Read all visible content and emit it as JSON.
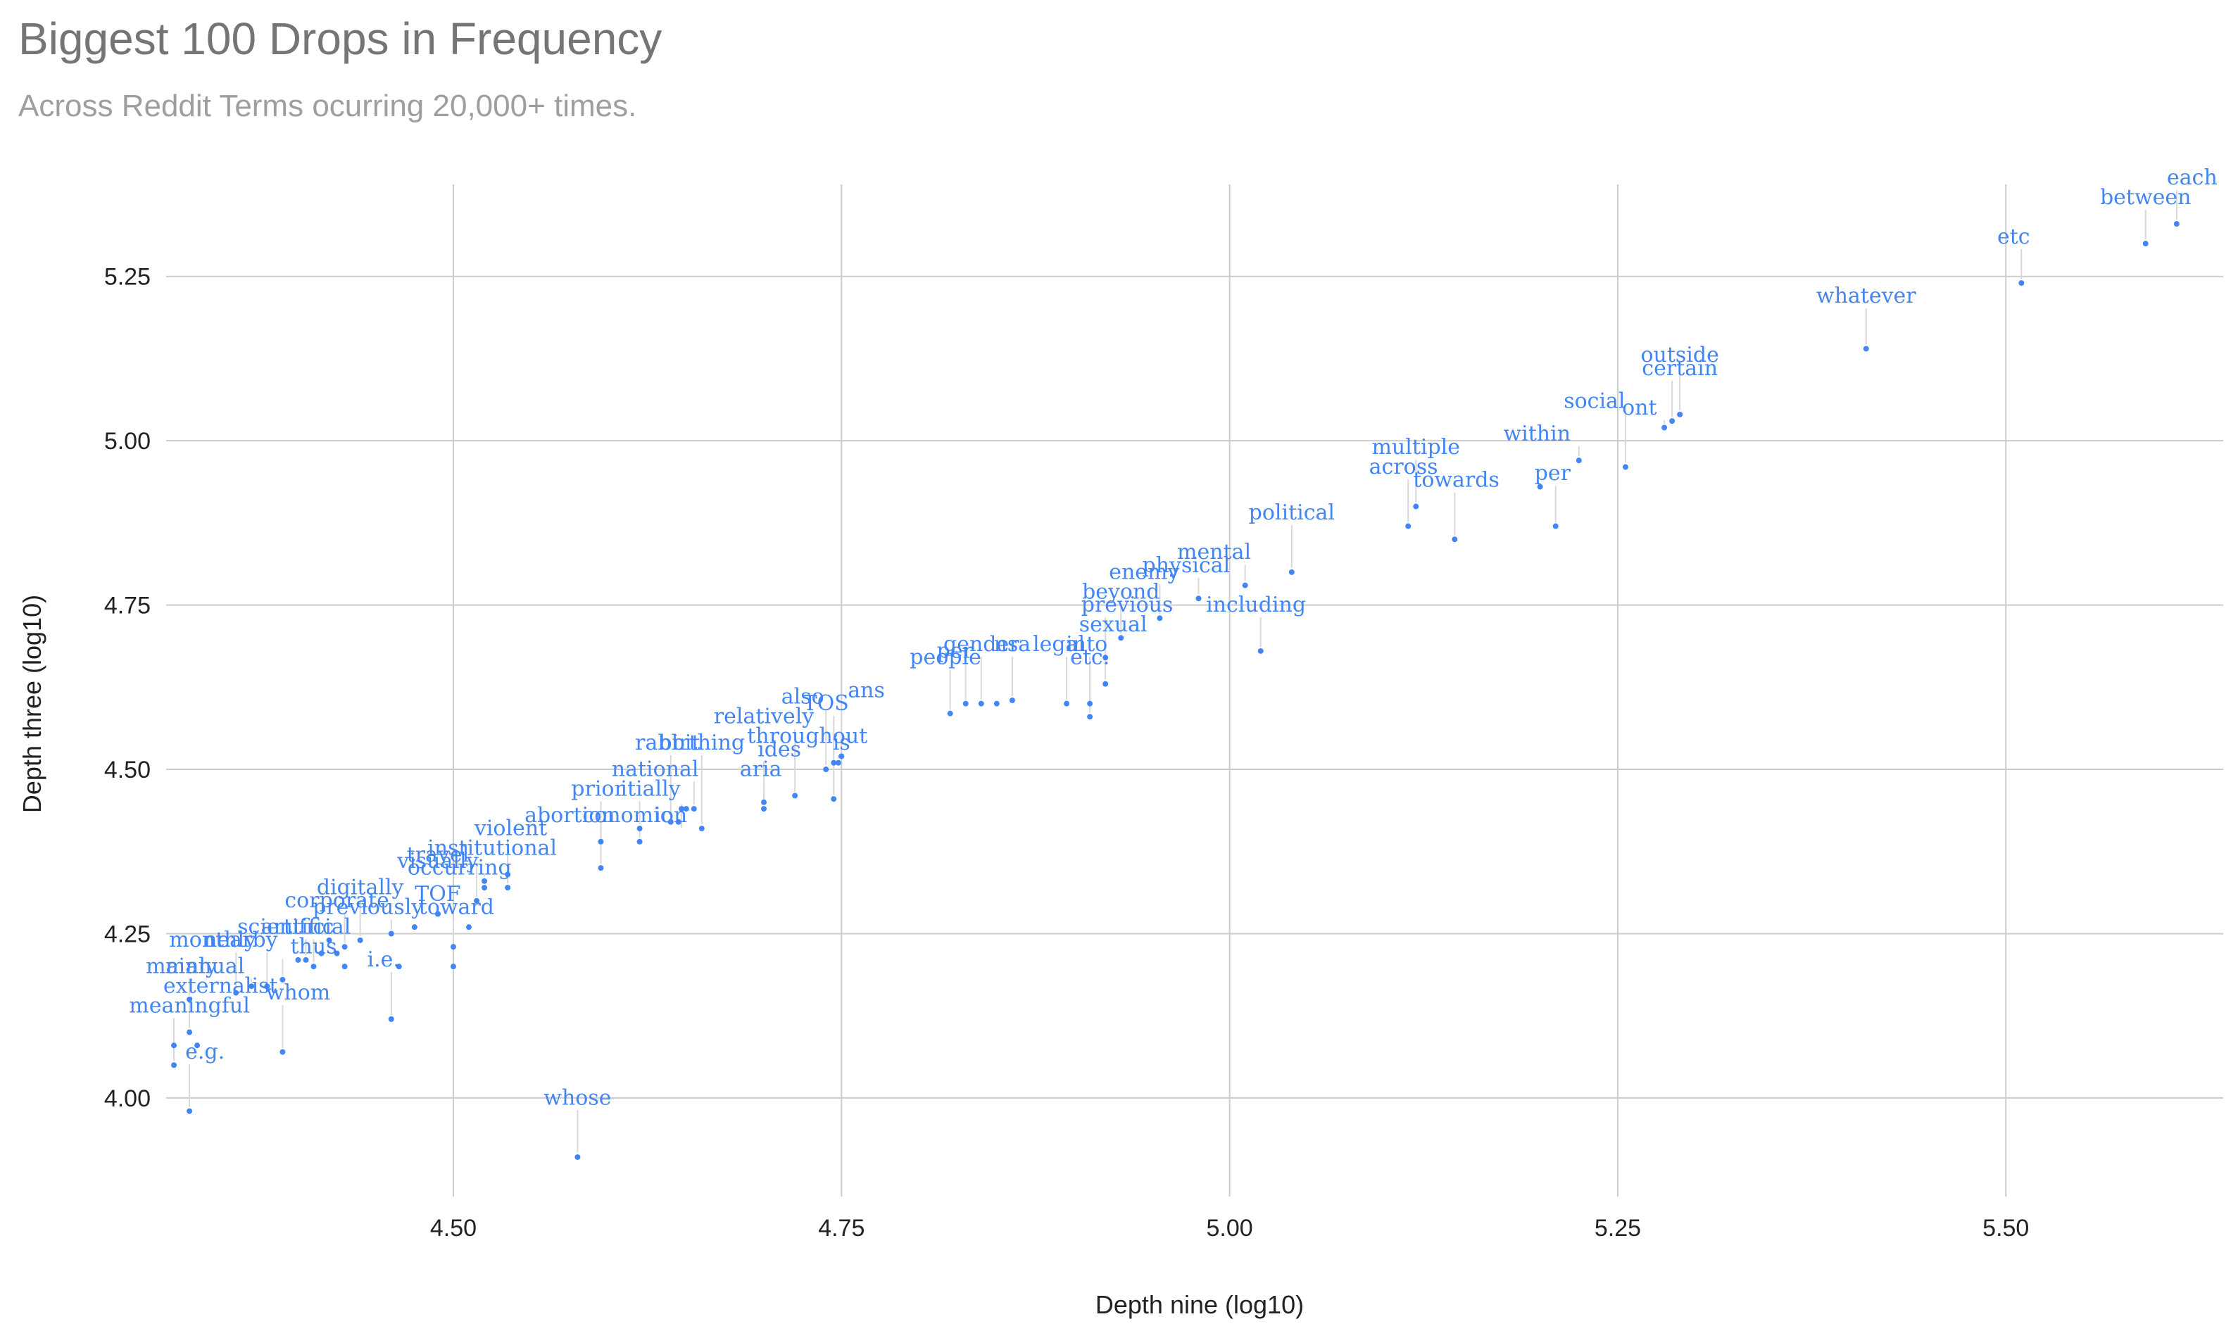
{
  "chart_data": {
    "type": "scatter",
    "title": "Biggest 100 Drops in Frequency",
    "subtitle": "Across Reddit Terms ocurring 20,000+ times.",
    "xlabel": "Depth nine (log10)",
    "ylabel": "Depth three (log10)",
    "xlim": [
      4.315,
      5.64
    ],
    "ylim": [
      3.85,
      5.39
    ],
    "xticks": [
      "4.50",
      "4.75",
      "5.00",
      "5.25",
      "5.50"
    ],
    "yticks": [
      "4.00",
      "4.25",
      "4.50",
      "4.75",
      "5.00",
      "5.25"
    ],
    "grid": true,
    "color": "#4285f4",
    "points": [
      {
        "label": "each",
        "x": 5.61,
        "y": 5.33,
        "lx": 5.62,
        "ly": 5.39
      },
      {
        "label": "between",
        "x": 5.59,
        "y": 5.3,
        "lx": 5.59,
        "ly": 5.36
      },
      {
        "label": "etc",
        "x": 5.51,
        "y": 5.24,
        "lx": 5.505,
        "ly": 5.3
      },
      {
        "label": "whatever",
        "x": 5.41,
        "y": 5.14,
        "lx": 5.41,
        "ly": 5.21
      },
      {
        "label": "outside",
        "x": 5.29,
        "y": 5.04,
        "lx": 5.29,
        "ly": 5.12
      },
      {
        "label": "certain",
        "x": 5.285,
        "y": 5.03,
        "lx": 5.29,
        "ly": 5.1
      },
      {
        "label": "ont",
        "x": 5.28,
        "y": 5.02,
        "lx": 5.264,
        "ly": 5.04
      },
      {
        "label": "social",
        "x": 5.255,
        "y": 4.96,
        "lx": 5.235,
        "ly": 5.05
      },
      {
        "label": "within",
        "x": 5.225,
        "y": 4.97,
        "lx": 5.198,
        "ly": 5.0
      },
      {
        "label": "per",
        "x": 5.21,
        "y": 4.87,
        "lx": 5.208,
        "ly": 4.94
      },
      {
        "label": "multiple",
        "x": 5.12,
        "y": 4.9,
        "lx": 5.12,
        "ly": 4.98
      },
      {
        "label": "across",
        "x": 5.115,
        "y": 4.87,
        "lx": 5.112,
        "ly": 4.95
      },
      {
        "label": "towards",
        "x": 5.145,
        "y": 4.85,
        "lx": 5.146,
        "ly": 4.93
      },
      {
        "label": "political",
        "x": 5.04,
        "y": 4.8,
        "lx": 5.04,
        "ly": 4.88
      },
      {
        "label": "mental",
        "x": 5.01,
        "y": 4.78,
        "lx": 4.99,
        "ly": 4.82
      },
      {
        "label": "physical",
        "x": 4.98,
        "y": 4.76,
        "lx": 4.972,
        "ly": 4.8
      },
      {
        "label": "enemy",
        "x": 4.955,
        "y": 4.73,
        "lx": 4.945,
        "ly": 4.79
      },
      {
        "label": "beyond",
        "x": 4.93,
        "y": 4.7,
        "lx": 4.93,
        "ly": 4.76
      },
      {
        "label": "previous",
        "x": 4.92,
        "y": 4.67,
        "lx": 4.934,
        "ly": 4.74
      },
      {
        "label": "including",
        "x": 5.02,
        "y": 4.68,
        "lx": 5.017,
        "ly": 4.74
      },
      {
        "label": "sexual",
        "x": 4.92,
        "y": 4.63,
        "lx": 4.925,
        "ly": 4.71
      },
      {
        "label": "into",
        "x": 4.91,
        "y": 4.6,
        "lx": 4.908,
        "ly": 4.68
      },
      {
        "label": "etc.",
        "x": 4.91,
        "y": 4.58,
        "lx": 4.91,
        "ly": 4.66
      },
      {
        "label": "legal",
        "x": 4.895,
        "y": 4.6,
        "lx": 4.89,
        "ly": 4.68
      },
      {
        "label": "gender",
        "x": 4.84,
        "y": 4.6,
        "lx": 4.84,
        "ly": 4.68
      },
      {
        "label": "nsa",
        "x": 4.86,
        "y": 4.605,
        "lx": 4.86,
        "ly": 4.68
      },
      {
        "label": "per",
        "x": 4.83,
        "y": 4.6,
        "lx": 4.823,
        "ly": 4.67
      },
      {
        "label": "people",
        "x": 4.82,
        "y": 4.585,
        "lx": 4.817,
        "ly": 4.66
      },
      {
        "label": "ans",
        "x": 4.75,
        "y": 4.52,
        "lx": 4.766,
        "ly": 4.61
      },
      {
        "label": "TOS",
        "x": 4.745,
        "y": 4.51,
        "lx": 4.74,
        "ly": 4.59
      },
      {
        "label": "also",
        "x": 4.74,
        "y": 4.5,
        "lx": 4.725,
        "ly": 4.6
      },
      {
        "label": "relatively",
        "x": 4.72,
        "y": 4.46,
        "lx": 4.7,
        "ly": 4.57
      },
      {
        "label": "throughout",
        "x": 4.745,
        "y": 4.455,
        "lx": 4.728,
        "ly": 4.54
      },
      {
        "label": "is",
        "x": 4.748,
        "y": 4.51,
        "lx": 4.75,
        "ly": 4.53
      },
      {
        "label": "birthing",
        "x": 4.66,
        "y": 4.41,
        "lx": 4.66,
        "ly": 4.53
      },
      {
        "label": "ides",
        "x": 4.7,
        "y": 4.44,
        "lx": 4.71,
        "ly": 4.52
      },
      {
        "label": "rabbit",
        "x": 4.64,
        "y": 4.42,
        "lx": 4.638,
        "ly": 4.53
      },
      {
        "label": "national",
        "x": 4.655,
        "y": 4.44,
        "lx": 4.63,
        "ly": 4.49
      },
      {
        "label": "aria",
        "x": 4.7,
        "y": 4.45,
        "lx": 4.698,
        "ly": 4.49
      },
      {
        "label": "prior",
        "x": 4.595,
        "y": 4.39,
        "lx": 4.593,
        "ly": 4.46
      },
      {
        "label": "itially",
        "x": 4.62,
        "y": 4.41,
        "lx": 4.627,
        "ly": 4.46
      },
      {
        "label": "abortion",
        "x": 4.595,
        "y": 4.35,
        "lx": 4.575,
        "ly": 4.42
      },
      {
        "label": "conomic",
        "x": 4.62,
        "y": 4.39,
        "lx": 4.612,
        "ly": 4.42
      },
      {
        "label": "ion",
        "x": 4.647,
        "y": 4.44,
        "lx": 4.64,
        "ly": 4.42
      },
      {
        "label": "violent",
        "x": 4.535,
        "y": 4.34,
        "lx": 4.537,
        "ly": 4.4
      },
      {
        "label": "institutional",
        "x": 4.535,
        "y": 4.32,
        "lx": 4.525,
        "ly": 4.37
      },
      {
        "label": "travel",
        "x": 4.515,
        "y": 4.3,
        "lx": 4.49,
        "ly": 4.36
      },
      {
        "label": "visually",
        "x": 4.52,
        "y": 4.33,
        "lx": 4.49,
        "ly": 4.35
      },
      {
        "label": "occurring",
        "x": 4.52,
        "y": 4.32,
        "lx": 4.504,
        "ly": 4.34
      },
      {
        "label": "digitally",
        "x": 4.44,
        "y": 4.24,
        "lx": 4.44,
        "ly": 4.31
      },
      {
        "label": "TOF",
        "x": 4.49,
        "y": 4.28,
        "lx": 4.49,
        "ly": 4.3
      },
      {
        "label": "toward",
        "x": 4.5,
        "y": 4.23,
        "lx": 4.502,
        "ly": 4.28
      },
      {
        "label": "previously",
        "x": 4.46,
        "y": 4.25,
        "lx": 4.445,
        "ly": 4.28
      },
      {
        "label": "corporate",
        "x": 4.43,
        "y": 4.23,
        "lx": 4.425,
        "ly": 4.29
      },
      {
        "label": "scientific",
        "x": 4.405,
        "y": 4.21,
        "lx": 4.392,
        "ly": 4.25
      },
      {
        "label": "artificial",
        "x": 4.41,
        "y": 4.2,
        "lx": 4.405,
        "ly": 4.25
      },
      {
        "label": "nearby",
        "x": 4.38,
        "y": 4.17,
        "lx": 4.363,
        "ly": 4.23
      },
      {
        "label": "thus",
        "x": 4.39,
        "y": 4.18,
        "lx": 4.41,
        "ly": 4.22
      },
      {
        "label": "monthly",
        "x": 4.36,
        "y": 4.16,
        "lx": 4.345,
        "ly": 4.23
      },
      {
        "label": "i.e.",
        "x": 4.46,
        "y": 4.12,
        "lx": 4.455,
        "ly": 4.2
      },
      {
        "label": "manual",
        "x": 4.37,
        "y": 4.17,
        "lx": 4.34,
        "ly": 4.19
      },
      {
        "label": "mainly",
        "x": 4.33,
        "y": 4.15,
        "lx": 4.325,
        "ly": 4.19
      },
      {
        "label": "externalist",
        "x": 4.33,
        "y": 4.1,
        "lx": 4.35,
        "ly": 4.16
      },
      {
        "label": "whom",
        "x": 4.39,
        "y": 4.07,
        "lx": 4.4,
        "ly": 4.15
      },
      {
        "label": "meaningful",
        "x": 4.32,
        "y": 4.05,
        "lx": 4.33,
        "ly": 4.13
      },
      {
        "label": "e.g.",
        "x": 4.33,
        "y": 3.98,
        "lx": 4.34,
        "ly": 4.06
      },
      {
        "label": "whose",
        "x": 4.58,
        "y": 3.91,
        "lx": 4.58,
        "ly": 3.99
      },
      {
        "label": "",
        "x": 4.335,
        "y": 4.08,
        "lx": null,
        "ly": null
      },
      {
        "label": "",
        "x": 4.32,
        "y": 4.08,
        "lx": null,
        "ly": null
      },
      {
        "label": "",
        "x": 4.4,
        "y": 4.21,
        "lx": null,
        "ly": null
      },
      {
        "label": "",
        "x": 4.415,
        "y": 4.22,
        "lx": null,
        "ly": null
      },
      {
        "label": "",
        "x": 4.425,
        "y": 4.22,
        "lx": null,
        "ly": null
      },
      {
        "label": "",
        "x": 4.43,
        "y": 4.2,
        "lx": null,
        "ly": null
      },
      {
        "label": "",
        "x": 4.42,
        "y": 4.24,
        "lx": null,
        "ly": null
      },
      {
        "label": "",
        "x": 4.5,
        "y": 4.2,
        "lx": null,
        "ly": null
      },
      {
        "label": "",
        "x": 4.465,
        "y": 4.2,
        "lx": null,
        "ly": null
      },
      {
        "label": "",
        "x": 4.475,
        "y": 4.26,
        "lx": null,
        "ly": null
      },
      {
        "label": "",
        "x": 4.51,
        "y": 4.26,
        "lx": null,
        "ly": null
      },
      {
        "label": "",
        "x": 4.49,
        "y": 4.28,
        "lx": null,
        "ly": null
      },
      {
        "label": "",
        "x": 4.65,
        "y": 4.44,
        "lx": null,
        "ly": null
      },
      {
        "label": "",
        "x": 4.645,
        "y": 4.42,
        "lx": null,
        "ly": null
      },
      {
        "label": "",
        "x": 4.85,
        "y": 4.6,
        "lx": null,
        "ly": null
      },
      {
        "label": "",
        "x": 5.2,
        "y": 4.93,
        "lx": null,
        "ly": null
      }
    ]
  }
}
